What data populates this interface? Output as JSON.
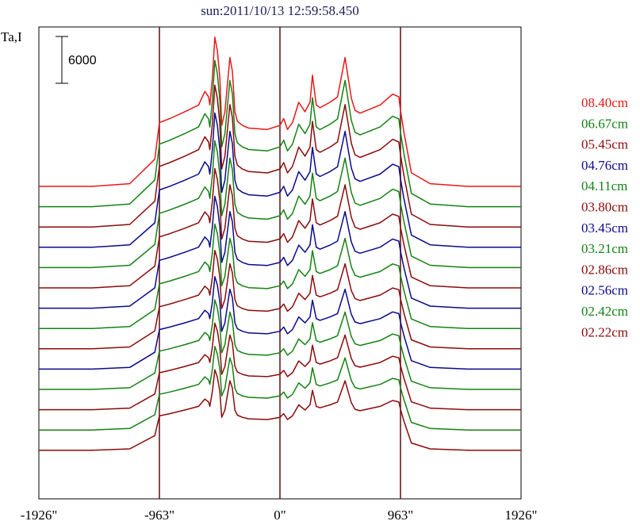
{
  "chart_data": {
    "type": "line",
    "title": "sun:2011/10/13 12:59:58.450",
    "ylabel": "Ta,I",
    "scale_bar_label": "6000",
    "scale_bar_value": 6000,
    "xlim": [
      -1926,
      1926
    ],
    "x_ticks": [
      {
        "value": -1926,
        "label": "-1926\""
      },
      {
        "value": -963,
        "label": "-963\""
      },
      {
        "value": 0,
        "label": "0\""
      },
      {
        "value": 963,
        "label": "963\""
      },
      {
        "value": 1926,
        "label": "1926\""
      }
    ],
    "vertical_lines": [
      -963,
      0,
      963
    ],
    "profile": {
      "x": [
        -1926,
        -1500,
        -1200,
        -1000,
        -963,
        -880,
        -760,
        -650,
        -600,
        -570,
        -560,
        -540,
        -520,
        -500,
        -480,
        -465,
        -440,
        -420,
        -400,
        -380,
        -360,
        -340,
        -300,
        -250,
        -100,
        0,
        30,
        60,
        100,
        150,
        200,
        240,
        260,
        290,
        320,
        400,
        460,
        520,
        570,
        600,
        640,
        800,
        900,
        950,
        963,
        990,
        1050,
        1200,
        1500,
        1926
      ],
      "shape": [
        0,
        0,
        0.02,
        0.2,
        0.47,
        0.5,
        0.55,
        0.6,
        0.7,
        0.66,
        0.6,
        0.8,
        1.1,
        1.0,
        0.8,
        0.45,
        0.55,
        0.75,
        0.95,
        0.85,
        0.55,
        0.48,
        0.45,
        0.43,
        0.42,
        0.45,
        0.5,
        0.42,
        0.47,
        0.62,
        0.55,
        0.62,
        0.82,
        0.6,
        0.58,
        0.62,
        0.66,
        0.95,
        0.65,
        0.56,
        0.54,
        0.6,
        0.68,
        0.66,
        0.56,
        0.4,
        0.1,
        0.02,
        0,
        0
      ],
      "width": [
        1,
        1,
        1,
        1,
        1,
        1,
        1,
        1,
        1,
        1,
        1,
        1,
        1,
        1,
        1,
        1,
        1,
        1,
        1,
        1,
        1,
        1,
        1,
        1,
        1,
        1,
        1,
        1,
        1,
        1,
        1,
        1,
        1,
        1,
        1,
        1,
        1,
        1,
        1,
        1,
        1,
        1,
        1,
        1,
        1,
        1,
        1,
        1,
        1,
        1
      ]
    },
    "series": [
      {
        "name": "08.40cm",
        "color": "#e81818",
        "baseline": 0,
        "amplitude": 1.0
      },
      {
        "name": "06.67cm",
        "color": "#148214",
        "baseline": -1.0,
        "amplitude": 0.98
      },
      {
        "name": "05.45cm",
        "color": "#8c0a0a",
        "baseline": -2.0,
        "amplitude": 0.95
      },
      {
        "name": "04.76cm",
        "color": "#0a0a8c",
        "baseline": -3.0,
        "amplitude": 0.9
      },
      {
        "name": "04.11cm",
        "color": "#148214",
        "baseline": -4.0,
        "amplitude": 0.85
      },
      {
        "name": "03.80cm",
        "color": "#8c0a0a",
        "baseline": -5.0,
        "amplitude": 0.8
      },
      {
        "name": "03.45cm",
        "color": "#0a0a8c",
        "baseline": -6.0,
        "amplitude": 0.75
      },
      {
        "name": "03.21cm",
        "color": "#148214",
        "baseline": -7.0,
        "amplitude": 0.7
      },
      {
        "name": "02.86cm",
        "color": "#8c0a0a",
        "baseline": -8.0,
        "amplitude": 0.66
      },
      {
        "name": "02.56cm",
        "color": "#0a0a8c",
        "baseline": -9.0,
        "amplitude": 0.62
      },
      {
        "name": "02.42cm",
        "color": "#148214",
        "baseline": -10.0,
        "amplitude": 0.6
      },
      {
        "name": "02.22cm",
        "color": "#8c0a0a",
        "baseline": -11.0,
        "amplitude": 0.58
      },
      {
        "name": "",
        "color": "#148214",
        "baseline": -12.0,
        "amplitude": 0.56
      },
      {
        "name": "",
        "color": "#8c0a0a",
        "baseline": -13.0,
        "amplitude": 0.54
      }
    ]
  }
}
